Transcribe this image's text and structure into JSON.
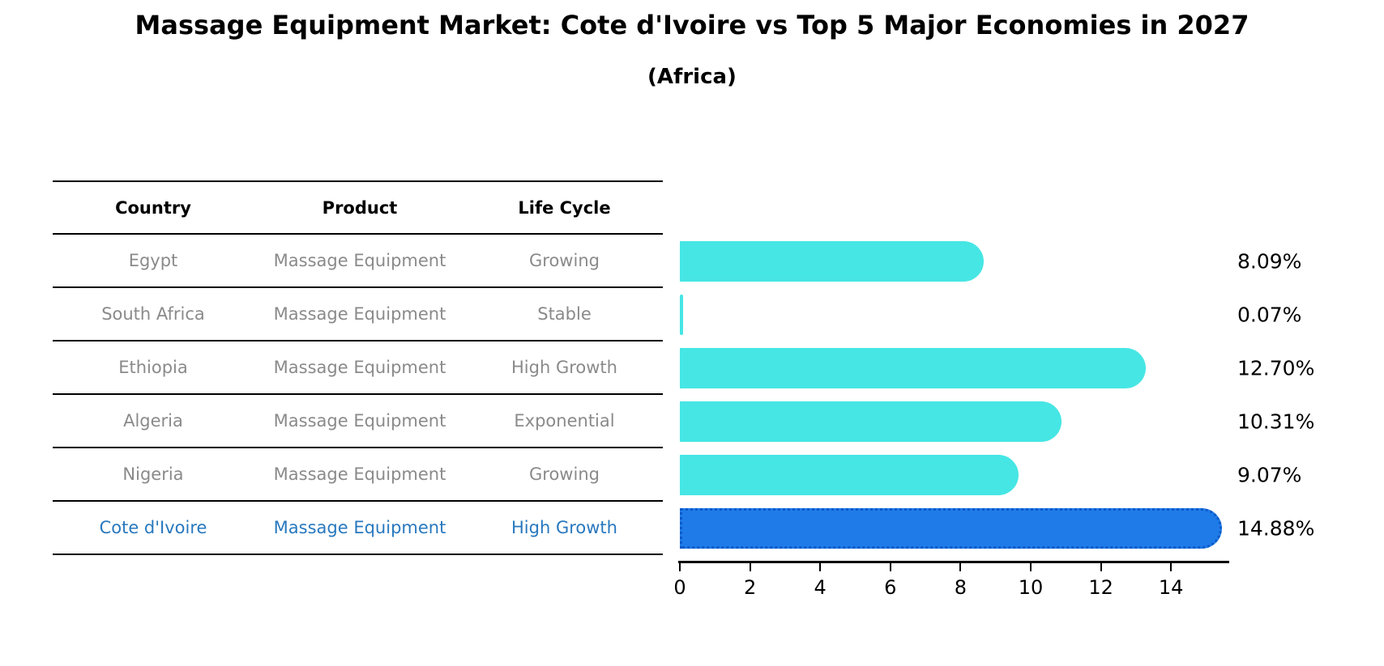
{
  "header": {
    "title": "Massage Equipment Market: Cote d'Ivoire vs Top 5 Major Economies in 2027",
    "subtitle": "(Africa)"
  },
  "table": {
    "columns": [
      "Country",
      "Product",
      "Life Cycle"
    ],
    "rows": [
      {
        "country": "Egypt",
        "product": "Massage Equipment",
        "life_cycle": "Growing",
        "highlighted": false
      },
      {
        "country": "South Africa",
        "product": "Massage Equipment",
        "life_cycle": "Stable",
        "highlighted": false
      },
      {
        "country": "Ethiopia",
        "product": "Massage Equipment",
        "life_cycle": "High Growth",
        "highlighted": false
      },
      {
        "country": "Algeria",
        "product": "Massage Equipment",
        "life_cycle": "Exponential",
        "highlighted": false
      },
      {
        "country": "Nigeria",
        "product": "Massage Equipment",
        "life_cycle": "Growing",
        "highlighted": true
      }
    ],
    "highlighted_row": {
      "country": "Cote d'Ivoire",
      "product": "Massage Equipment",
      "life_cycle": "High Growth"
    }
  },
  "chart_data": {
    "type": "bar",
    "orientation": "horizontal",
    "title": "Massage Equipment Market: Cote d'Ivoire vs Top 5 Major Economies in 2027",
    "subtitle": "(Africa)",
    "categories": [
      "Egypt",
      "South Africa",
      "Ethiopia",
      "Algeria",
      "Nigeria",
      "Cote d'Ivoire"
    ],
    "values": [
      8.09,
      0.07,
      12.7,
      10.31,
      9.07,
      14.88
    ],
    "value_labels": [
      "8.09%",
      "0.07%",
      "12.70%",
      "10.31%",
      "9.07%",
      "14.88%"
    ],
    "x_ticks": [
      0,
      2,
      4,
      6,
      8,
      10,
      12,
      14
    ],
    "xlim": [
      0,
      15.7
    ],
    "grid": false,
    "legend": "none",
    "highlight_index": 5,
    "colors": {
      "bar": "#46E6E4",
      "highlight_bar": "#1F7BE8",
      "highlight_bar_edge": "#0D5AC8",
      "highlight_text": "#2878BE",
      "row_text": "#8a8a8a",
      "axis": "#000000"
    }
  }
}
